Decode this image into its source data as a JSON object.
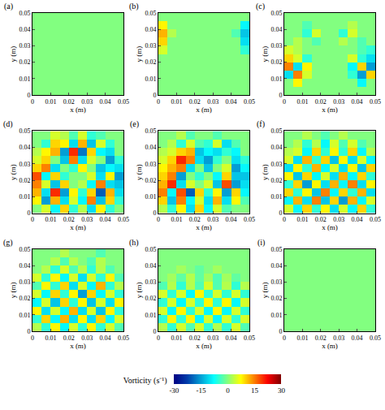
{
  "chart_data": {
    "type": "heatmap",
    "x_label": "x (m)",
    "y_label": "y (m)",
    "xlim": [
      0,
      0.05
    ],
    "ylim": [
      0,
      0.05
    ],
    "xticks": [
      0,
      0.01,
      0.02,
      0.03,
      0.04,
      0.05
    ],
    "yticks": [
      0,
      0.01,
      0.02,
      0.03,
      0.04,
      0.05
    ],
    "x": [
      0.0025,
      0.0075,
      0.0125,
      0.0175,
      0.0225,
      0.0275,
      0.0325,
      0.0375,
      0.0425,
      0.0475
    ],
    "y": [
      0.0025,
      0.0075,
      0.0125,
      0.0175,
      0.0225,
      0.0275,
      0.0325,
      0.0375,
      0.0425,
      0.0475
    ],
    "colorbar": {
      "title": "Vorticity (s⁻¹)",
      "range": [
        -30,
        30
      ],
      "ticks": [
        -30,
        -15,
        0,
        15,
        30
      ]
    },
    "panels": [
      {
        "label": "(a)",
        "z": [
          [
            0,
            0,
            0,
            0,
            0,
            0,
            0,
            0,
            0,
            0
          ],
          [
            0,
            0,
            0,
            0,
            0,
            0,
            0,
            0,
            0,
            0
          ],
          [
            0,
            0,
            0,
            0,
            0,
            0,
            0,
            0,
            0,
            0
          ],
          [
            0,
            0,
            0,
            0,
            0,
            0,
            0,
            0,
            0,
            0
          ],
          [
            0,
            0,
            0,
            0,
            0,
            0,
            0,
            0,
            0,
            0
          ],
          [
            0,
            0,
            0,
            0,
            0,
            0,
            0,
            0,
            0,
            0
          ],
          [
            0,
            0,
            0,
            0,
            0,
            0,
            0,
            0,
            0,
            0
          ],
          [
            0,
            0,
            0,
            0,
            0,
            0,
            0,
            0,
            0,
            0
          ],
          [
            0,
            0,
            0,
            0,
            0,
            0,
            0,
            0,
            0,
            0
          ],
          [
            0,
            0,
            0,
            0,
            0,
            0,
            0,
            0,
            0,
            0
          ]
        ]
      },
      {
        "label": "(b)",
        "z": [
          [
            0,
            0,
            0,
            0,
            0,
            0,
            0,
            0,
            0,
            0
          ],
          [
            0,
            0,
            0,
            0,
            0,
            0,
            0,
            0,
            0,
            0
          ],
          [
            0,
            0,
            0,
            0,
            0,
            0,
            0,
            0,
            0,
            0
          ],
          [
            0,
            0,
            0,
            0,
            0,
            0,
            0,
            0,
            0,
            0
          ],
          [
            0,
            0,
            0,
            0,
            0,
            0,
            0,
            0,
            0,
            0
          ],
          [
            5,
            0,
            0,
            0,
            0,
            0,
            0,
            0,
            0,
            -5
          ],
          [
            10,
            0,
            0,
            0,
            0,
            0,
            0,
            0,
            0,
            -10
          ],
          [
            12,
            3,
            0,
            0,
            0,
            0,
            0,
            0,
            -3,
            -12
          ],
          [
            8,
            0,
            0,
            0,
            0,
            0,
            0,
            0,
            0,
            -8
          ],
          [
            0,
            0,
            0,
            0,
            0,
            0,
            0,
            0,
            0,
            0
          ]
        ]
      },
      {
        "label": "(c)",
        "z": [
          [
            0,
            0,
            0,
            0,
            0,
            0,
            0,
            0,
            0,
            0
          ],
          [
            0,
            8,
            0,
            0,
            0,
            0,
            0,
            0,
            -8,
            0
          ],
          [
            -10,
            15,
            5,
            0,
            0,
            0,
            0,
            -5,
            -15,
            10
          ],
          [
            15,
            -10,
            8,
            0,
            0,
            0,
            0,
            -8,
            10,
            -15
          ],
          [
            10,
            5,
            -5,
            0,
            0,
            0,
            0,
            5,
            -5,
            -10
          ],
          [
            5,
            3,
            0,
            0,
            0,
            0,
            0,
            0,
            -3,
            -5
          ],
          [
            0,
            3,
            0,
            -3,
            0,
            0,
            3,
            0,
            -3,
            0
          ],
          [
            0,
            0,
            -5,
            5,
            0,
            0,
            -5,
            5,
            0,
            0
          ],
          [
            0,
            0,
            -3,
            0,
            0,
            0,
            0,
            3,
            0,
            0
          ],
          [
            0,
            0,
            0,
            0,
            0,
            0,
            0,
            0,
            0,
            0
          ]
        ]
      },
      {
        "label": "(d)",
        "z": [
          [
            0,
            5,
            -8,
            10,
            -5,
            3,
            -10,
            8,
            -5,
            0
          ],
          [
            8,
            -15,
            12,
            -10,
            5,
            -8,
            15,
            -12,
            10,
            -5
          ],
          [
            12,
            -10,
            20,
            -15,
            8,
            -5,
            10,
            -20,
            12,
            -10
          ],
          [
            15,
            5,
            -12,
            10,
            0,
            3,
            -8,
            15,
            -10,
            -12
          ],
          [
            18,
            -8,
            10,
            -5,
            0,
            0,
            5,
            -10,
            8,
            -15
          ],
          [
            10,
            15,
            -10,
            0,
            -5,
            8,
            0,
            -12,
            -8,
            -10
          ],
          [
            5,
            10,
            0,
            -12,
            15,
            -10,
            5,
            0,
            -15,
            -5
          ],
          [
            3,
            8,
            12,
            -15,
            20,
            -18,
            10,
            -8,
            -10,
            0
          ],
          [
            0,
            -5,
            10,
            8,
            -10,
            12,
            -12,
            5,
            -5,
            0
          ],
          [
            0,
            0,
            5,
            3,
            -3,
            5,
            -5,
            -3,
            0,
            0
          ]
        ]
      },
      {
        "label": "(e)",
        "z": [
          [
            3,
            -5,
            8,
            -10,
            10,
            -8,
            5,
            -3,
            0,
            0
          ],
          [
            10,
            -12,
            15,
            -8,
            5,
            -10,
            12,
            -10,
            8,
            -3
          ],
          [
            15,
            -8,
            18,
            -20,
            10,
            -5,
            8,
            -15,
            10,
            -8
          ],
          [
            12,
            20,
            -10,
            5,
            0,
            5,
            -12,
            18,
            -15,
            -10
          ],
          [
            10,
            15,
            -15,
            0,
            -5,
            0,
            -8,
            10,
            -12,
            -12
          ],
          [
            8,
            12,
            15,
            -10,
            0,
            -12,
            0,
            5,
            -15,
            -8
          ],
          [
            5,
            10,
            20,
            15,
            -10,
            -15,
            -5,
            0,
            -10,
            -5
          ],
          [
            3,
            5,
            10,
            12,
            -12,
            -8,
            -10,
            -5,
            -8,
            0
          ],
          [
            0,
            3,
            -5,
            5,
            -3,
            -5,
            5,
            -10,
            -3,
            0
          ],
          [
            0,
            0,
            3,
            -3,
            0,
            0,
            -3,
            0,
            0,
            0
          ]
        ]
      },
      {
        "label": "(f)",
        "z": [
          [
            5,
            -8,
            10,
            -5,
            8,
            -10,
            5,
            -8,
            10,
            -5
          ],
          [
            -8,
            12,
            -10,
            15,
            -12,
            10,
            -15,
            12,
            -8,
            5
          ],
          [
            10,
            -5,
            8,
            -12,
            15,
            -8,
            10,
            -5,
            12,
            -10
          ],
          [
            -5,
            10,
            -15,
            8,
            -10,
            12,
            -8,
            15,
            -10,
            8
          ],
          [
            8,
            -12,
            10,
            -8,
            5,
            -10,
            12,
            -8,
            10,
            -5
          ],
          [
            -10,
            8,
            -5,
            12,
            -8,
            5,
            -10,
            8,
            -12,
            10
          ],
          [
            5,
            -10,
            12,
            -5,
            10,
            -12,
            8,
            -10,
            5,
            -8
          ],
          [
            3,
            5,
            -8,
            10,
            -5,
            8,
            -5,
            10,
            -8,
            3
          ],
          [
            0,
            3,
            -5,
            3,
            -8,
            5,
            -3,
            5,
            -3,
            0
          ],
          [
            0,
            0,
            3,
            0,
            -3,
            0,
            3,
            0,
            0,
            0
          ]
        ]
      },
      {
        "label": "(g)",
        "z": [
          [
            3,
            -5,
            8,
            -8,
            5,
            -5,
            8,
            -5,
            5,
            -3
          ],
          [
            -5,
            10,
            -8,
            12,
            -10,
            8,
            -10,
            10,
            -8,
            5
          ],
          [
            8,
            -10,
            5,
            -8,
            12,
            -10,
            5,
            -12,
            8,
            -5
          ],
          [
            -8,
            5,
            -12,
            10,
            -5,
            8,
            -12,
            5,
            -10,
            8
          ],
          [
            5,
            -8,
            10,
            -5,
            8,
            -15,
            10,
            -8,
            5,
            -5
          ],
          [
            -3,
            8,
            -5,
            10,
            -10,
            5,
            -8,
            12,
            -5,
            3
          ],
          [
            5,
            -5,
            8,
            -8,
            5,
            -10,
            5,
            -5,
            8,
            -3
          ],
          [
            0,
            3,
            -5,
            5,
            -3,
            3,
            -5,
            3,
            -3,
            0
          ],
          [
            0,
            0,
            3,
            -3,
            3,
            0,
            -3,
            3,
            0,
            0
          ],
          [
            0,
            0,
            0,
            3,
            0,
            0,
            0,
            -3,
            0,
            0
          ]
        ]
      },
      {
        "label": "(h)",
        "z": [
          [
            3,
            -5,
            5,
            -3,
            5,
            -5,
            3,
            -5,
            5,
            -3
          ],
          [
            -5,
            8,
            -5,
            8,
            -8,
            5,
            -8,
            5,
            -5,
            5
          ],
          [
            5,
            -8,
            8,
            -5,
            5,
            -8,
            8,
            -8,
            5,
            -5
          ],
          [
            -5,
            5,
            -8,
            5,
            -5,
            8,
            -5,
            8,
            -8,
            5
          ],
          [
            5,
            -5,
            5,
            -8,
            8,
            -5,
            5,
            -5,
            5,
            -5
          ],
          [
            -3,
            3,
            -5,
            3,
            -3,
            5,
            -3,
            3,
            -5,
            3
          ],
          [
            0,
            2,
            -2,
            3,
            -2,
            2,
            -3,
            2,
            -2,
            0
          ],
          [
            0,
            0,
            2,
            0,
            -2,
            0,
            2,
            0,
            0,
            0
          ],
          [
            0,
            0,
            0,
            0,
            0,
            0,
            0,
            0,
            0,
            0
          ],
          [
            0,
            0,
            0,
            0,
            0,
            0,
            0,
            0,
            0,
            0
          ]
        ]
      },
      {
        "label": "(i)",
        "z": [
          [
            0,
            0,
            0,
            0,
            0,
            0,
            0,
            0,
            0,
            0
          ],
          [
            0,
            0,
            0,
            0,
            0,
            0,
            0,
            0,
            0,
            0
          ],
          [
            0,
            0,
            0,
            0,
            0,
            0,
            0,
            0,
            0,
            0
          ],
          [
            0,
            0,
            0,
            0,
            0,
            0,
            0,
            0,
            0,
            0
          ],
          [
            0,
            0,
            0,
            0,
            0,
            0,
            0,
            0,
            0,
            0
          ],
          [
            0,
            0,
            0,
            0,
            0,
            0,
            0,
            0,
            0,
            0
          ],
          [
            0,
            0,
            0,
            0,
            0,
            0,
            0,
            0,
            0,
            0
          ],
          [
            0,
            0,
            0,
            0,
            0,
            0,
            0,
            0,
            0,
            0
          ],
          [
            0,
            0,
            0,
            0,
            0,
            0,
            0,
            0,
            0,
            0
          ],
          [
            0,
            0,
            0,
            0,
            0,
            0,
            0,
            0,
            0,
            0
          ]
        ]
      }
    ]
  }
}
